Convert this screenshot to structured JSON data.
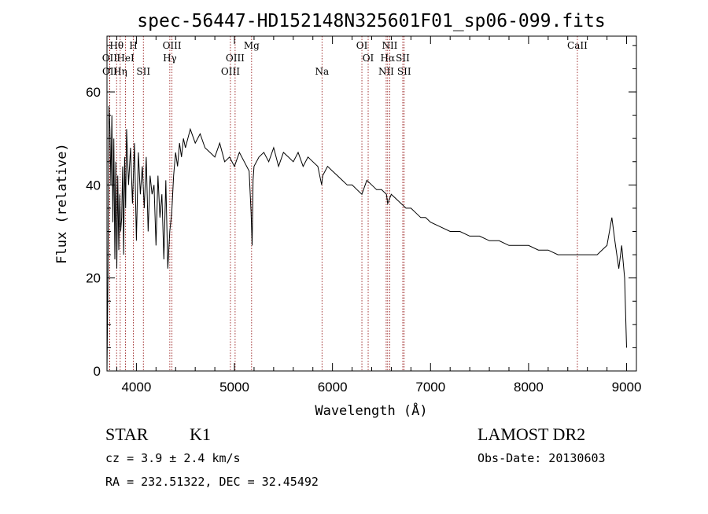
{
  "chart_data": {
    "type": "line",
    "title": "spec-56447-HD152148N325601F01_sp06-099.fits",
    "xlabel": "Wavelength (Å)",
    "ylabel": "Flux (relative)",
    "xlim": [
      3700,
      9100
    ],
    "ylim": [
      0,
      72
    ],
    "x_ticks": [
      4000,
      5000,
      6000,
      7000,
      8000,
      9000
    ],
    "y_ticks": [
      0,
      20,
      40,
      60
    ],
    "grid": false,
    "series": [
      {
        "x": [
          3700,
          3710,
          3720,
          3730,
          3740,
          3750,
          3760,
          3770,
          3780,
          3790,
          3800,
          3810,
          3820,
          3830,
          3840,
          3850,
          3860,
          3870,
          3880,
          3890,
          3900,
          3920,
          3940,
          3960,
          3980,
          4000,
          4020,
          4040,
          4060,
          4080,
          4100,
          4120,
          4140,
          4160,
          4180,
          4200,
          4220,
          4240,
          4260,
          4280,
          4300,
          4320,
          4340,
          4360,
          4380,
          4400,
          4420,
          4440,
          4460,
          4480,
          4500,
          4550,
          4600,
          4650,
          4700,
          4750,
          4800,
          4850,
          4900,
          4950,
          5000,
          5050,
          5100,
          5150,
          5170,
          5180,
          5190,
          5200,
          5250,
          5300,
          5350,
          5400,
          5450,
          5500,
          5550,
          5600,
          5650,
          5700,
          5750,
          5800,
          5850,
          5890,
          5900,
          5950,
          6000,
          6050,
          6100,
          6150,
          6200,
          6250,
          6300,
          6350,
          6400,
          6450,
          6500,
          6550,
          6563,
          6600,
          6650,
          6700,
          6750,
          6800,
          6850,
          6900,
          6950,
          7000,
          7100,
          7200,
          7300,
          7400,
          7500,
          7600,
          7700,
          7800,
          7900,
          8000,
          8100,
          8200,
          8300,
          8400,
          8500,
          8600,
          8700,
          8800,
          8850,
          8880,
          8900,
          8920,
          8950,
          8980,
          9000
        ],
        "y": [
          0,
          20,
          57,
          52,
          40,
          55,
          32,
          50,
          24,
          45,
          22,
          42,
          26,
          38,
          30,
          33,
          44,
          25,
          46,
          35,
          52,
          40,
          48,
          36,
          49,
          28,
          47,
          38,
          44,
          35,
          46,
          30,
          42,
          38,
          40,
          27,
          42,
          33,
          38,
          24,
          41,
          22,
          30,
          34,
          42,
          47,
          44,
          49,
          46,
          50,
          48,
          52,
          49,
          51,
          48,
          47,
          46,
          49,
          45,
          46,
          44,
          47,
          45,
          43,
          34,
          27,
          41,
          44,
          46,
          47,
          45,
          48,
          44,
          47,
          46,
          45,
          47,
          44,
          46,
          45,
          44,
          40,
          42,
          44,
          43,
          42,
          41,
          40,
          40,
          39,
          38,
          41,
          40,
          39,
          39,
          38,
          36,
          38,
          37,
          36,
          35,
          35,
          34,
          33,
          33,
          32,
          31,
          30,
          30,
          29,
          29,
          28,
          28,
          27,
          27,
          27,
          26,
          26,
          25,
          25,
          25,
          25,
          25,
          27,
          33,
          28,
          25,
          22,
          27,
          20,
          5
        ]
      }
    ],
    "spectral_lines": [
      {
        "label": "Hθ",
        "wavelength": 3798,
        "row": 0
      },
      {
        "label": "OII",
        "wavelength": 3727,
        "row": 1
      },
      {
        "label": "OII",
        "wavelength": 3729,
        "row": 2
      },
      {
        "label": "HeI",
        "wavelength": 3889,
        "row": 1
      },
      {
        "label": "Hη",
        "wavelength": 3835,
        "row": 2
      },
      {
        "label": "H",
        "wavelength": 3969,
        "row": 0
      },
      {
        "label": "SII",
        "wavelength": 4071,
        "row": 2
      },
      {
        "label": "OIII",
        "wavelength": 4363,
        "row": 0
      },
      {
        "label": "Hγ",
        "wavelength": 4341,
        "row": 1
      },
      {
        "label": "OIII",
        "wavelength": 5007,
        "row": 1
      },
      {
        "label": "OIII",
        "wavelength": 4959,
        "row": 2
      },
      {
        "label": "Mg",
        "wavelength": 5175,
        "row": 0
      },
      {
        "label": "Na",
        "wavelength": 5893,
        "row": 2
      },
      {
        "label": "OI",
        "wavelength": 6300,
        "row": 0
      },
      {
        "label": "OI",
        "wavelength": 6364,
        "row": 1
      },
      {
        "label": "NII",
        "wavelength": 6584,
        "row": 0
      },
      {
        "label": "Hα",
        "wavelength": 6563,
        "row": 1
      },
      {
        "label": "NII",
        "wavelength": 6548,
        "row": 2
      },
      {
        "label": "SII",
        "wavelength": 6717,
        "row": 1
      },
      {
        "label": "SII",
        "wavelength": 6731,
        "row": 2
      },
      {
        "label": "CaII",
        "wavelength": 8498,
        "row": 0
      }
    ]
  },
  "info": {
    "object_class": "STAR",
    "subclass": "K1",
    "survey": "LAMOST DR2",
    "cz": "cz = 3.9 ± 2.4 km/s",
    "obs_date": "Obs-Date: 20130603",
    "coords": "RA = 232.51322, DEC =  32.45492"
  },
  "colors": {
    "line_marker": "#8b0000",
    "spectrum": "#000000"
  }
}
